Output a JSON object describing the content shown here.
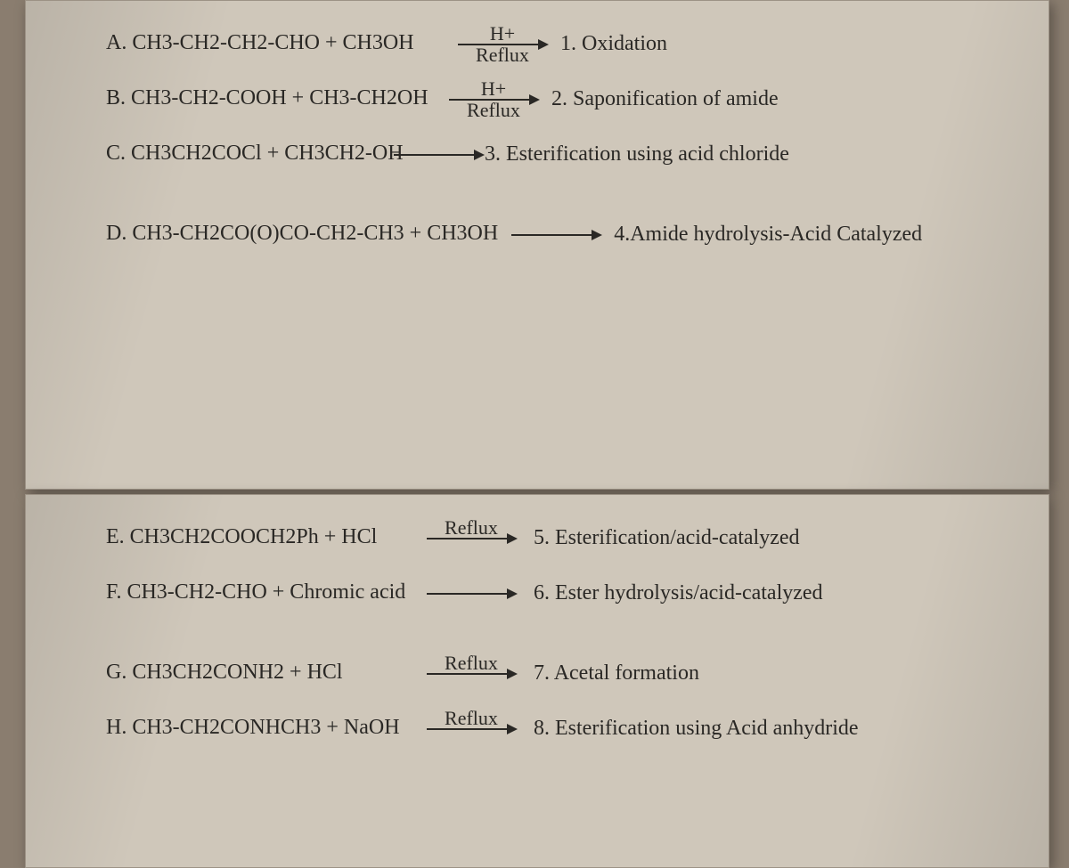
{
  "page": {
    "background_color": "#8a7d6f",
    "paper_color": "#cfc7ba",
    "text_color": "#2a2825",
    "reactant_fontsize_pt": 18,
    "reaction_fontsize_pt": 18,
    "font_family": "Times New Roman serif"
  },
  "items": [
    {
      "letter": "A",
      "reactants": "CH3-CH2-CH2-CHO + CH3OH",
      "arrow_top": "H+",
      "arrow_bottom": "Reflux",
      "rxn_num": "1",
      "rxn_name": "Oxidation"
    },
    {
      "letter": "B",
      "reactants": "CH3-CH2-COOH + CH3-CH2OH",
      "arrow_top": "H+",
      "arrow_bottom": "Reflux",
      "rxn_num": "2",
      "rxn_name": "Saponification of amide"
    },
    {
      "letter": "C",
      "reactants": "CH3CH2COCl + CH3CH2-OH",
      "arrow_top": "",
      "arrow_bottom": "",
      "rxn_num": "3",
      "rxn_name": "Esterification using acid chloride"
    },
    {
      "letter": "D",
      "reactants": "CH3-CH2CO(O)CO-CH2-CH3 + CH3OH",
      "arrow_top": "",
      "arrow_bottom": "",
      "rxn_num": "4",
      "rxn_name": "Amide hydrolysis-Acid Catalyzed"
    },
    {
      "letter": "E",
      "reactants": "CH3CH2COOCH2Ph + HCl",
      "arrow_top": "Reflux",
      "arrow_bottom": "",
      "rxn_num": "5",
      "rxn_name": "Esterification/acid-catalyzed"
    },
    {
      "letter": "F",
      "reactants": "CH3-CH2-CHO + Chromic acid",
      "arrow_top": "",
      "arrow_bottom": "",
      "rxn_num": "6",
      "rxn_name": "Ester hydrolysis/acid-catalyzed"
    },
    {
      "letter": "G",
      "reactants": "CH3CH2CONH2 +  HCl",
      "arrow_top": "Reflux",
      "arrow_bottom": "",
      "rxn_num": "7",
      "rxn_name": "Acetal formation"
    },
    {
      "letter": "H",
      "reactants": "CH3-CH2CONHCH3 + NaOH",
      "arrow_top": "Reflux",
      "arrow_bottom": "",
      "rxn_num": "8",
      "rxn_name": "Esterification using Acid anhydride"
    }
  ]
}
